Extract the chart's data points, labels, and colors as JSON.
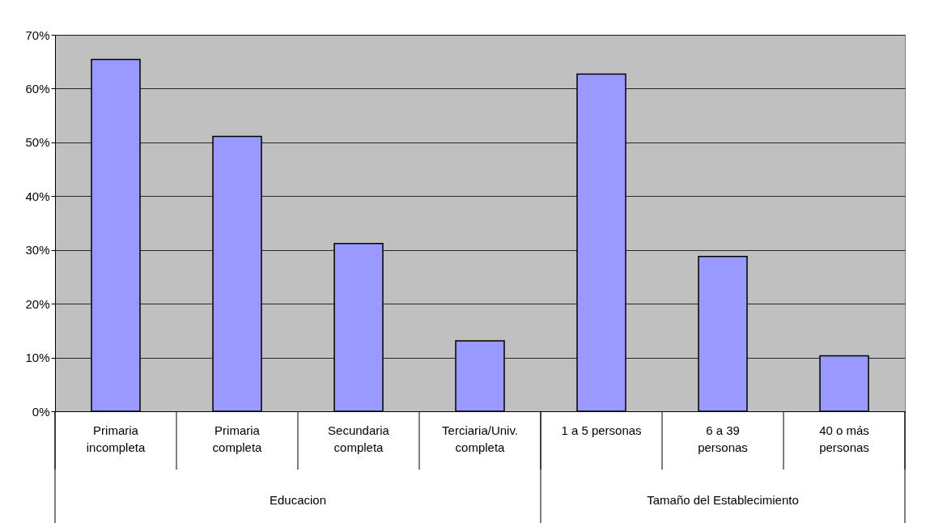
{
  "chart_data": {
    "type": "bar",
    "categories": [
      "Primaria\nincompleta",
      "Primaria\ncompleta",
      "Secundaria\ncompleta",
      "Terciaria/Univ.\ncompleta",
      "1 a 5 personas",
      "6 a 39\npersonas",
      "40 o más\npersonas"
    ],
    "values": [
      65.4,
      51.1,
      31.2,
      13.1,
      62.7,
      28.8,
      10.3
    ],
    "color": "#9999ff",
    "ylim": [
      0,
      70
    ],
    "yticks": [
      {
        "value": 0,
        "label": "0%"
      },
      {
        "value": 10,
        "label": "10%"
      },
      {
        "value": 20,
        "label": "20%"
      },
      {
        "value": 30,
        "label": "30%"
      },
      {
        "value": 40,
        "label": "40%"
      },
      {
        "value": 50,
        "label": "50%"
      },
      {
        "value": 60,
        "label": "60%"
      },
      {
        "value": 70,
        "label": "70%"
      }
    ],
    "grid": "y",
    "annotations": [
      "Educacion",
      "Tamaño del Establecimiento"
    ]
  }
}
